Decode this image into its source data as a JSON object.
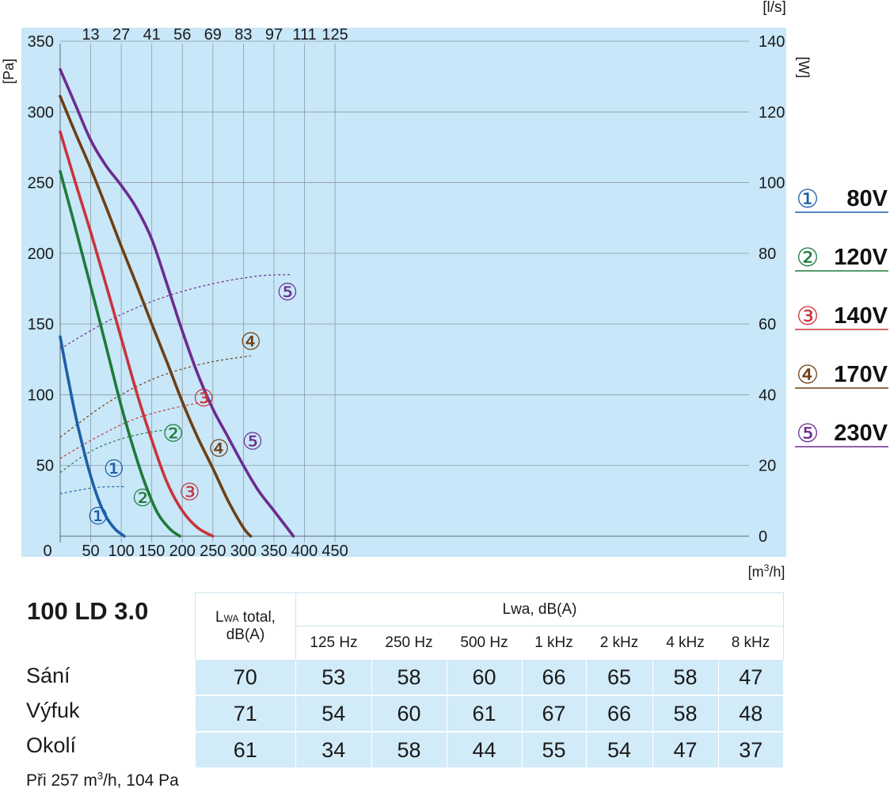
{
  "chart_data": {
    "type": "line",
    "x_axis": {
      "label_parts": [
        "[m",
        "3",
        "/h]"
      ],
      "range": [
        0,
        450
      ],
      "ticks": [
        0,
        50,
        100,
        150,
        200,
        250,
        300,
        350,
        400,
        450
      ]
    },
    "x_top_axis": {
      "label": "[l/s]",
      "ticks": [
        13,
        27,
        41,
        56,
        69,
        83,
        97,
        111,
        125
      ]
    },
    "y_axis": {
      "label": "[Pa]",
      "range": [
        0,
        350
      ],
      "ticks": [
        50,
        100,
        150,
        200,
        250,
        300,
        350
      ]
    },
    "y_right_axis": {
      "label": "[W]",
      "range": [
        0,
        140
      ],
      "ticks": [
        0,
        20,
        40,
        60,
        80,
        100,
        120,
        140
      ]
    },
    "grid": true,
    "legend": {
      "placement": "right"
    },
    "series": [
      {
        "id": "1",
        "marker": "①",
        "name": "80V",
        "color": "#1f5ea8",
        "pressure": {
          "x": [
            0,
            10,
            20,
            30,
            45,
            60,
            75,
            90,
            105
          ],
          "y": [
            141,
            118,
            96,
            76,
            50,
            29,
            14,
            5,
            0
          ]
        },
        "power": {
          "x": [
            0,
            30,
            60,
            90,
            105
          ],
          "y": [
            12,
            13,
            13.8,
            14,
            14
          ]
        }
      },
      {
        "id": "2",
        "marker": "②",
        "name": "120V",
        "color": "#1e7a3a",
        "pressure": {
          "x": [
            0,
            20,
            40,
            60,
            80,
            100,
            120,
            140,
            160,
            180,
            196
          ],
          "y": [
            258,
            226,
            193,
            160,
            126,
            92,
            62,
            36,
            16,
            5,
            0
          ]
        },
        "power": {
          "x": [
            0,
            50,
            100,
            150,
            196
          ],
          "y": [
            18,
            24,
            27.5,
            29.5,
            30.5
          ]
        }
      },
      {
        "id": "3",
        "marker": "③",
        "name": "140V",
        "color": "#c8343c",
        "pressure": {
          "x": [
            0,
            25,
            50,
            75,
            100,
            125,
            150,
            175,
            200,
            225,
            250
          ],
          "y": [
            286,
            250,
            215,
            178,
            140,
            102,
            68,
            38,
            18,
            6,
            0
          ]
        },
        "power": {
          "x": [
            0,
            60,
            120,
            180,
            250
          ],
          "y": [
            22,
            28,
            33,
            36,
            38.5
          ]
        }
      },
      {
        "id": "4",
        "marker": "④",
        "name": "170V",
        "color": "#6e3f13",
        "pressure": {
          "x": [
            0,
            25,
            50,
            75,
            100,
            125,
            150,
            175,
            200,
            225,
            250,
            275,
            300,
            312
          ],
          "y": [
            311,
            285,
            260,
            233,
            205,
            178,
            150,
            123,
            95,
            70,
            48,
            25,
            6,
            0
          ]
        },
        "power": {
          "x": [
            0,
            80,
            160,
            240,
            312
          ],
          "y": [
            28,
            38,
            45,
            49,
            51
          ]
        }
      },
      {
        "id": "5",
        "marker": "⑤",
        "name": "230V",
        "color": "#6c2c8f",
        "pressure": {
          "x": [
            0,
            25,
            50,
            75,
            100,
            125,
            150,
            175,
            200,
            225,
            250,
            275,
            300,
            325,
            350,
            382
          ],
          "y": [
            330,
            305,
            280,
            262,
            248,
            232,
            210,
            178,
            145,
            115,
            90,
            70,
            50,
            32,
            18,
            0
          ]
        },
        "power": {
          "x": [
            0,
            80,
            160,
            240,
            320,
            380
          ],
          "y": [
            53,
            61,
            67,
            71,
            73.5,
            74
          ]
        }
      }
    ],
    "curve_labels": {
      "pressure": [
        {
          "marker": "①",
          "x": 62,
          "y": 14
        },
        {
          "marker": "②",
          "x": 135,
          "y": 27
        },
        {
          "marker": "③",
          "x": 212,
          "y": 31
        },
        {
          "marker": "④",
          "x": 260,
          "y": 62
        },
        {
          "marker": "⑤",
          "x": 315,
          "y": 67
        }
      ],
      "power": [
        {
          "marker": "①",
          "x": 88,
          "y": 19
        },
        {
          "marker": "②",
          "x": 185,
          "y": 29
        },
        {
          "marker": "③",
          "x": 235,
          "y": 39
        },
        {
          "marker": "④",
          "x": 312,
          "y": 55
        },
        {
          "marker": "⑤",
          "x": 372,
          "y": 69
        }
      ]
    }
  },
  "model": "100 LD 3.0",
  "table": {
    "total_header": {
      "main": "L",
      "sub": "WA",
      "rest": " total,",
      "line2": "dB(A)"
    },
    "band_header": "Lwa, dB(A)",
    "bands": [
      "125 Hz",
      "250 Hz",
      "500 Hz",
      "1 kHz",
      "2 kHz",
      "4 kHz",
      "8 kHz"
    ],
    "rows": [
      {
        "label": "Sání",
        "total": "70",
        "values": [
          "53",
          "58",
          "60",
          "66",
          "65",
          "58",
          "47"
        ]
      },
      {
        "label": "Výfuk",
        "total": "71",
        "values": [
          "54",
          "60",
          "61",
          "67",
          "66",
          "58",
          "48"
        ]
      },
      {
        "label": "Okolí",
        "total": "61",
        "values": [
          "34",
          "58",
          "44",
          "55",
          "54",
          "47",
          "37"
        ]
      }
    ]
  },
  "note": {
    "pre": "Při 257 m",
    "sup": "3",
    "post": "/h, 104 Pa"
  }
}
